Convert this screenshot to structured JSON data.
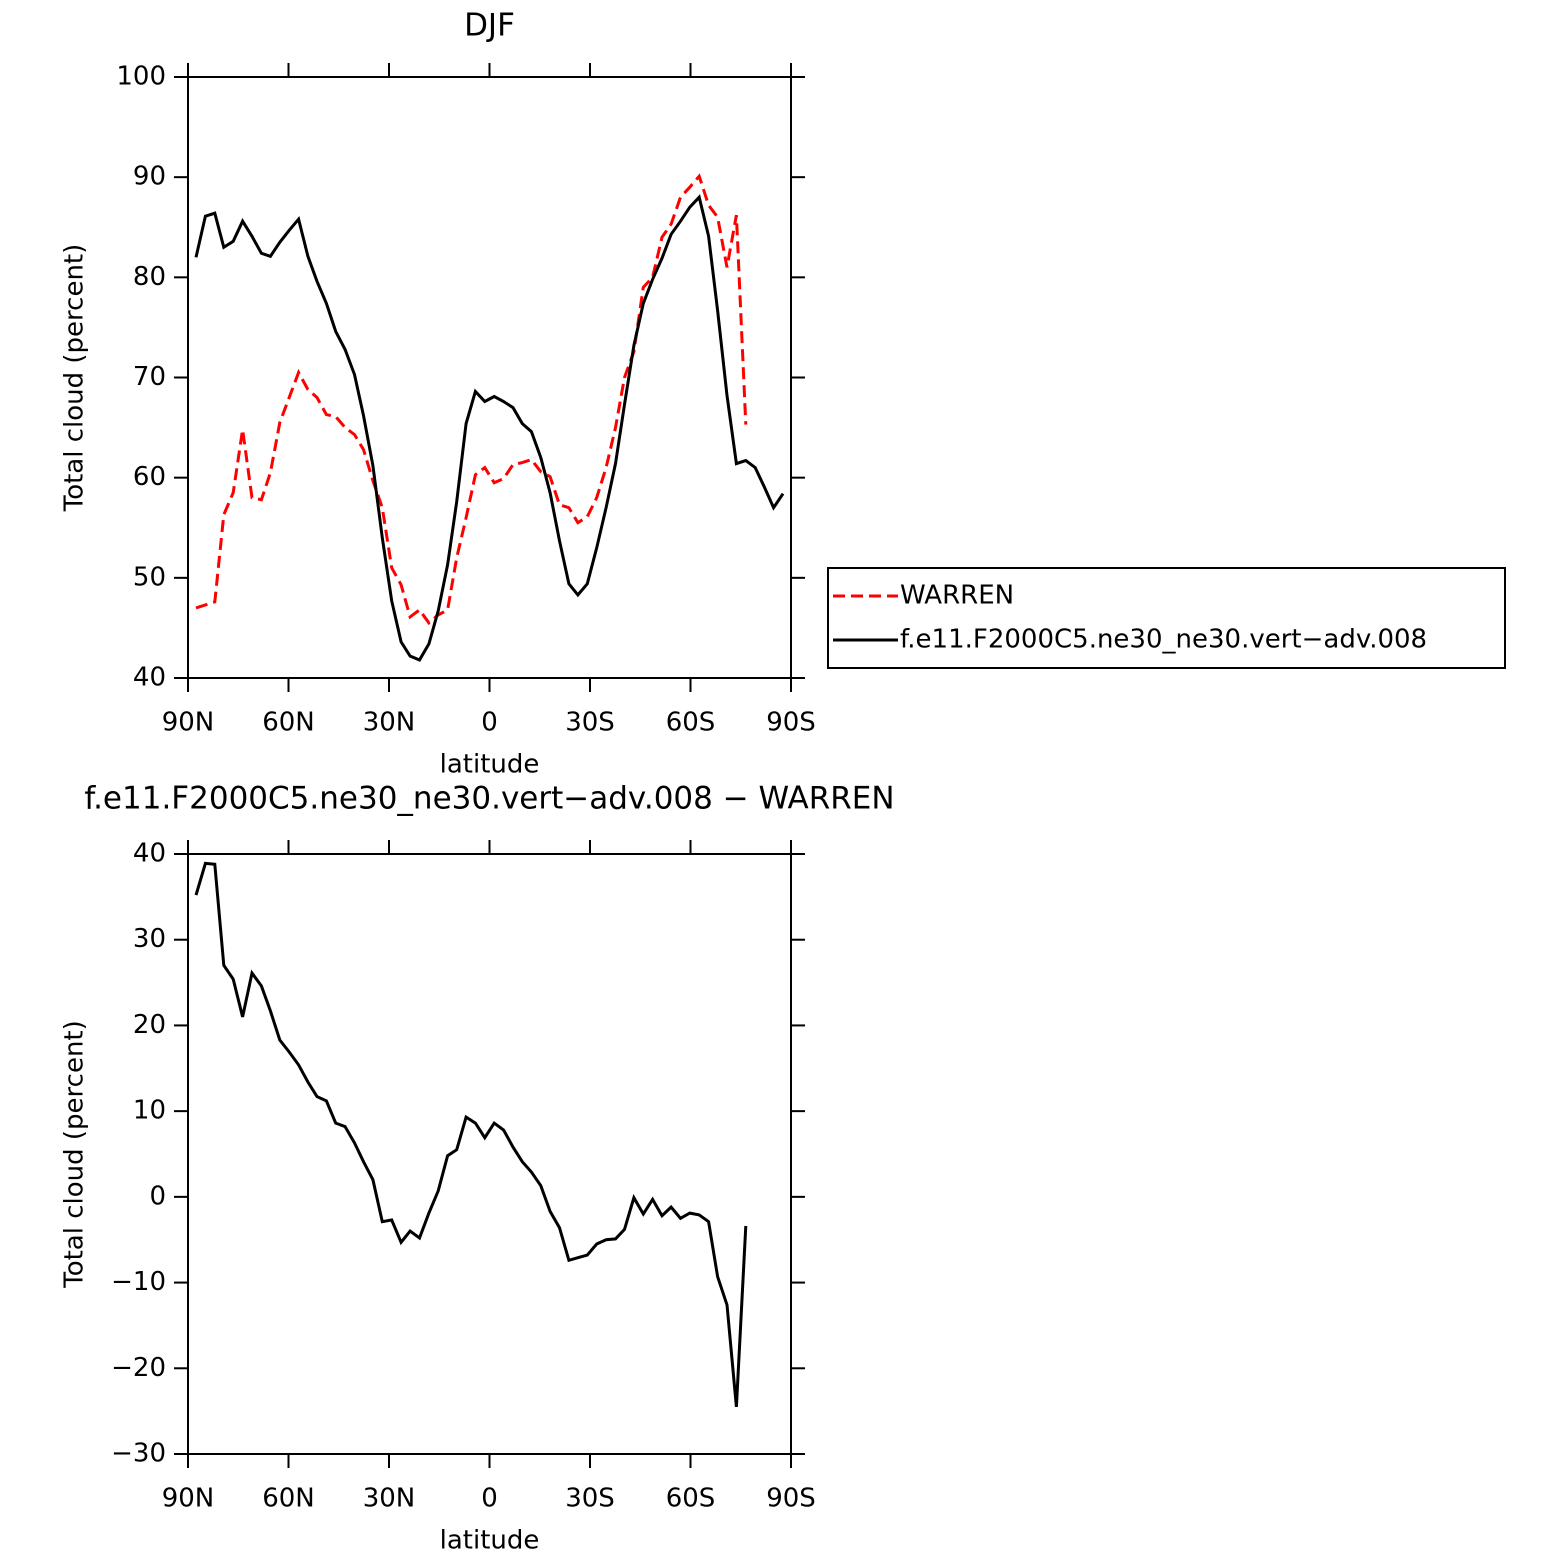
{
  "chart_data": [
    {
      "type": "line",
      "title": "DJF",
      "xlabel": "latitude",
      "ylabel": "Total cloud (percent)",
      "x": [
        87.6,
        84.8,
        82.0,
        79.3,
        76.5,
        73.7,
        70.9,
        68.1,
        65.4,
        62.6,
        59.8,
        57.0,
        54.2,
        51.5,
        48.7,
        45.9,
        43.1,
        40.3,
        37.6,
        34.8,
        32.0,
        29.2,
        26.4,
        23.7,
        20.9,
        18.1,
        15.3,
        12.5,
        9.8,
        7.0,
        4.2,
        1.4,
        -1.4,
        -4.2,
        -7.0,
        -9.8,
        -12.5,
        -15.3,
        -18.1,
        -20.9,
        -23.7,
        -26.4,
        -29.2,
        -32.0,
        -34.8,
        -37.6,
        -40.3,
        -43.1,
        -45.9,
        -48.7,
        -51.5,
        -54.2,
        -57.0,
        -59.8,
        -62.6,
        -65.4,
        -68.1,
        -70.9,
        -73.7,
        -76.5,
        -79.3,
        -82.0,
        -84.8,
        -87.6
      ],
      "xlim": [
        90,
        -90
      ],
      "xticks": [
        {
          "value": 90,
          "label": "90N"
        },
        {
          "value": 60,
          "label": "60N"
        },
        {
          "value": 30,
          "label": "30N"
        },
        0,
        {
          "value": -30,
          "label": "30S"
        },
        {
          "value": -60,
          "label": "60S"
        },
        {
          "value": -90,
          "label": "90S"
        }
      ],
      "ylim": [
        40,
        100
      ],
      "yticks": [
        40,
        50,
        60,
        70,
        80,
        90,
        100
      ],
      "legend": "right",
      "series": [
        {
          "name": "WARREN",
          "color": "#ff0000",
          "dashed": true,
          "values": [
            47.0,
            47.3,
            47.6,
            56.3,
            58.5,
            64.8,
            58.0,
            57.8,
            60.5,
            65.5,
            68.0,
            70.5,
            68.8,
            68.0,
            66.3,
            66.1,
            65.0,
            64.3,
            62.8,
            59.7,
            57.0,
            51.0,
            49.3,
            46.1,
            46.8,
            45.5,
            46.3,
            46.8,
            52.0,
            56.0,
            60.3,
            61.0,
            59.5,
            59.9,
            61.3,
            61.5,
            61.8,
            60.6,
            60.1,
            57.3,
            57.0,
            55.5,
            56.1,
            58.0,
            61.0,
            65.0,
            70.0,
            72.6,
            79.0,
            80.0,
            84.0,
            85.3,
            88.0,
            89.0,
            90.1,
            87.2,
            86.0,
            81.0,
            86.2,
            65.3,
            null,
            null,
            null,
            null
          ]
        },
        {
          "name": "f.e11.F2000C5.ne30_ne30.vert−adv.008",
          "color": "#000000",
          "dashed": false,
          "values": [
            82.0,
            86.1,
            86.4,
            83.0,
            83.6,
            85.6,
            84.1,
            82.4,
            82.1,
            83.5,
            84.7,
            85.8,
            82.1,
            79.6,
            77.4,
            74.6,
            72.8,
            70.3,
            66.2,
            61.2,
            54.0,
            47.7,
            43.6,
            42.2,
            41.8,
            43.4,
            46.7,
            51.3,
            57.6,
            65.4,
            68.6,
            67.6,
            68.1,
            67.6,
            67.0,
            65.4,
            64.6,
            62.0,
            58.5,
            53.7,
            49.4,
            48.3,
            49.4,
            53.0,
            57.0,
            61.4,
            67.3,
            73.2,
            77.4,
            79.8,
            81.9,
            84.3,
            85.6,
            87.0,
            88.0,
            84.1,
            76.7,
            68.2,
            61.4,
            61.7,
            61.0,
            59.1,
            57.0,
            58.4
          ]
        }
      ]
    },
    {
      "type": "line",
      "title": "f.e11.F2000C5.ne30_ne30.vert−adv.008 − WARREN",
      "xlabel": "latitude",
      "ylabel": "Total cloud (percent)",
      "x": [
        87.6,
        84.8,
        82.0,
        79.3,
        76.5,
        73.7,
        70.9,
        68.1,
        65.4,
        62.6,
        59.8,
        57.0,
        54.2,
        51.5,
        48.7,
        45.9,
        43.1,
        40.3,
        37.6,
        34.8,
        32.0,
        29.2,
        26.4,
        23.7,
        20.9,
        18.1,
        15.3,
        12.5,
        9.8,
        7.0,
        4.2,
        1.4,
        -1.4,
        -4.2,
        -7.0,
        -9.8,
        -12.5,
        -15.3,
        -18.1,
        -20.9,
        -23.7,
        -26.4,
        -29.2,
        -32.0,
        -34.8,
        -37.6,
        -40.3,
        -43.1,
        -45.9,
        -48.7,
        -51.5,
        -54.2,
        -57.0,
        -59.8,
        -62.6,
        -65.4,
        -68.1,
        -70.9,
        -73.7,
        -76.5,
        -79.3,
        -82.0,
        -84.8,
        -87.6
      ],
      "xlim": [
        90,
        -90
      ],
      "xticks": [
        {
          "value": 90,
          "label": "90N"
        },
        {
          "value": 60,
          "label": "60N"
        },
        {
          "value": 30,
          "label": "30N"
        },
        0,
        {
          "value": -30,
          "label": "30S"
        },
        {
          "value": -60,
          "label": "60S"
        },
        {
          "value": -90,
          "label": "90S"
        }
      ],
      "ylim": [
        -30,
        40
      ],
      "yticks": [
        {
          "value": -30,
          "label": "−30"
        },
        {
          "value": -20,
          "label": "−20"
        },
        {
          "value": -10,
          "label": "−10"
        },
        0,
        10,
        20,
        30,
        40
      ],
      "series": [
        {
          "color": "#000000",
          "dashed": false,
          "values": [
            35.2,
            38.9,
            38.8,
            27.0,
            25.4,
            21.0,
            26.1,
            24.6,
            21.7,
            18.3,
            16.9,
            15.4,
            13.4,
            11.7,
            11.2,
            8.6,
            8.2,
            6.3,
            4.1,
            2.0,
            -2.9,
            -2.7,
            -5.3,
            -4.0,
            -4.8,
            -1.9,
            0.7,
            4.8,
            5.5,
            9.3,
            8.6,
            6.9,
            8.6,
            7.8,
            5.8,
            4.1,
            2.9,
            1.3,
            -1.7,
            -3.6,
            -7.4,
            -7.1,
            -6.8,
            -5.5,
            -5.0,
            -4.9,
            -3.8,
            -0.1,
            -2.0,
            -0.3,
            -2.2,
            -1.2,
            -2.5,
            -1.9,
            -2.1,
            -2.9,
            -9.3,
            -12.6,
            -24.5,
            -3.4,
            null,
            null,
            null,
            null
          ]
        }
      ]
    }
  ]
}
